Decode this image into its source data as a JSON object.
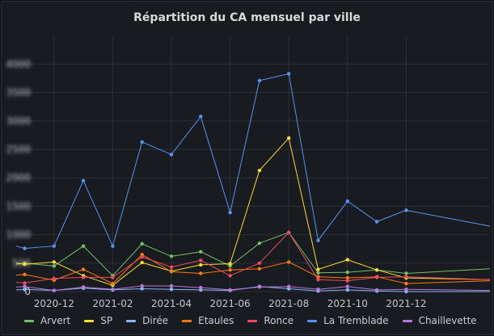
{
  "panel": {
    "title": "Répartition du CA mensuel par ville"
  },
  "chart_data": {
    "type": "line",
    "title": "Répartition du CA mensuel par ville",
    "xlabel": "",
    "ylabel": "",
    "x": [
      "2020-11",
      "2020-12",
      "2021-01",
      "2021-02",
      "2021-03",
      "2021-04",
      "2021-05",
      "2021-06",
      "2021-07",
      "2021-08",
      "2021-09",
      "2021-10",
      "2021-11",
      "2021-12"
    ],
    "x_ticks": [
      "2020-12",
      "2021-02",
      "2021-04",
      "2021-06",
      "2021-08",
      "2021-10",
      "2021-12"
    ],
    "y_ticks": [
      "0",
      "500",
      "1000",
      "1500",
      "2000",
      "2500",
      "3000",
      "3500",
      "4000"
    ],
    "ylim": [
      0,
      4200
    ],
    "grid": true,
    "legend_position": "bottom",
    "series": [
      {
        "name": "Arvert",
        "color": "#73bf69",
        "values": [
          500,
          450,
          800,
          280,
          840,
          620,
          700,
          450,
          850,
          1040,
          330,
          340,
          380,
          320
        ],
        "extend": [
          480,
          400
        ]
      },
      {
        "name": "SP",
        "color": "#fade2a",
        "values": [
          480,
          520,
          280,
          110,
          510,
          360,
          470,
          490,
          2130,
          2700,
          390,
          560,
          380,
          240
        ],
        "extend": [
          500,
          210
        ]
      },
      {
        "name": "Dirée",
        "color": "#8ab8ff",
        "values": [
          40,
          20,
          60,
          30,
          50,
          40,
          30,
          20,
          90,
          50,
          10,
          30,
          10,
          0
        ],
        "extend": [
          30,
          0
        ]
      },
      {
        "name": "Etaules",
        "color": "#ff780a",
        "values": [
          300,
          200,
          390,
          140,
          650,
          350,
          320,
          380,
          400,
          520,
          260,
          240,
          260,
          140
        ],
        "extend": [
          290,
          190
        ]
      },
      {
        "name": "Ronce",
        "color": "#f2495c",
        "values": [
          150,
          230,
          250,
          250,
          610,
          430,
          550,
          280,
          500,
          1040,
          210,
          190,
          250,
          260
        ],
        "extend": [
          160,
          210
        ]
      },
      {
        "name": "La Tremblade",
        "color": "#5794f2",
        "values": [
          760,
          800,
          1950,
          800,
          2630,
          2410,
          3080,
          1390,
          3710,
          3830,
          900,
          1590,
          1230,
          1430
        ],
        "extend": [
          800,
          1150
        ]
      },
      {
        "name": "Chaillevette",
        "color": "#b877d9",
        "values": [
          90,
          20,
          80,
          40,
          100,
          100,
          70,
          30,
          80,
          90,
          40,
          90,
          30,
          40
        ],
        "extend": [
          80,
          20
        ]
      }
    ]
  }
}
